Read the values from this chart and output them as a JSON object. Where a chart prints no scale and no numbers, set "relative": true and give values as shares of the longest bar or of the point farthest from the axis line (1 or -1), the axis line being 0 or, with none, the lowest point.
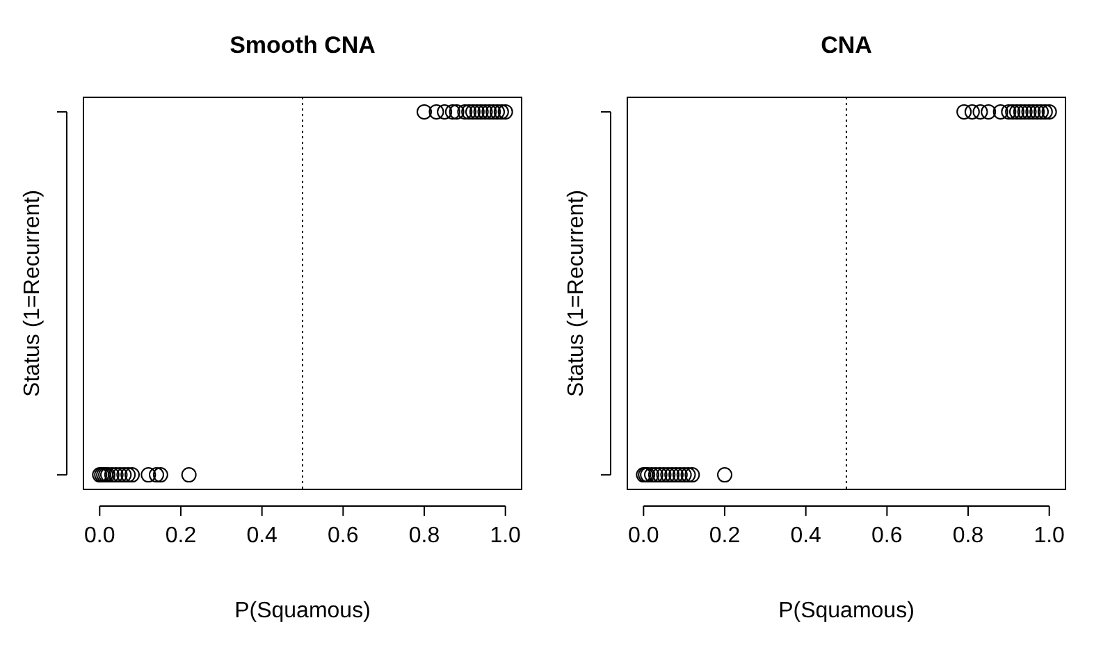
{
  "chart_data": [
    {
      "type": "scatter",
      "title": "Smooth CNA",
      "xlabel": "P(Squamous)",
      "ylabel": "Status (1=Recurrent)",
      "relative": true,
      "xlim": [
        -0.04,
        1.04
      ],
      "xticks": [
        {
          "value": 0,
          "label": "0.0"
        },
        {
          "value": 0.2,
          "label": "0.2"
        },
        {
          "value": 0.4,
          "label": "0.4"
        },
        {
          "value": 0.6,
          "label": "0.6"
        },
        {
          "value": 0.8,
          "label": "0.8"
        },
        {
          "value": 1,
          "label": "1.0"
        }
      ],
      "marker": "circle",
      "ref_lines": [
        {
          "axis": "x",
          "value": 0.5,
          "line_style": "dotted",
          "color": "#000000"
        }
      ],
      "series": [
        {
          "color": "#000000",
          "x": [
            0.8,
            0.83,
            0.85,
            0.87,
            0.88,
            0.9,
            0.91,
            0.92,
            0.93,
            0.94,
            0.95,
            0.96,
            0.97,
            0.98,
            0.99,
            1.0,
            0.0,
            0.005,
            0.01,
            0.015,
            0.02,
            0.03,
            0.04,
            0.05,
            0.06,
            0.07,
            0.08,
            0.12,
            0.14,
            0.15,
            0.22
          ],
          "values": [
            1,
            1,
            1,
            1,
            1,
            1,
            1,
            1,
            1,
            1,
            1,
            1,
            1,
            1,
            1,
            1,
            0,
            0,
            0,
            0,
            0,
            0,
            0,
            0,
            0,
            0,
            0,
            0,
            0,
            0,
            0
          ]
        }
      ]
    },
    {
      "type": "scatter",
      "title": "CNA",
      "xlabel": "P(Squamous)",
      "ylabel": "Status (1=Recurrent)",
      "relative": true,
      "xlim": [
        -0.04,
        1.04
      ],
      "xticks": [
        {
          "value": 0,
          "label": "0.0"
        },
        {
          "value": 0.2,
          "label": "0.2"
        },
        {
          "value": 0.4,
          "label": "0.4"
        },
        {
          "value": 0.6,
          "label": "0.6"
        },
        {
          "value": 0.8,
          "label": "0.8"
        },
        {
          "value": 1,
          "label": "1.0"
        }
      ],
      "marker": "circle",
      "ref_lines": [
        {
          "axis": "x",
          "value": 0.5,
          "line_style": "dotted",
          "color": "#000000"
        }
      ],
      "series": [
        {
          "color": "#000000",
          "x": [
            0.79,
            0.81,
            0.83,
            0.85,
            0.88,
            0.9,
            0.91,
            0.92,
            0.93,
            0.94,
            0.95,
            0.96,
            0.97,
            0.98,
            0.99,
            1.0,
            0.0,
            0.005,
            0.01,
            0.02,
            0.03,
            0.04,
            0.05,
            0.06,
            0.07,
            0.08,
            0.09,
            0.1,
            0.11,
            0.12,
            0.2
          ],
          "values": [
            1,
            1,
            1,
            1,
            1,
            1,
            1,
            1,
            1,
            1,
            1,
            1,
            1,
            1,
            1,
            1,
            0,
            0,
            0,
            0,
            0,
            0,
            0,
            0,
            0,
            0,
            0,
            0,
            0,
            0,
            0
          ]
        }
      ]
    }
  ]
}
